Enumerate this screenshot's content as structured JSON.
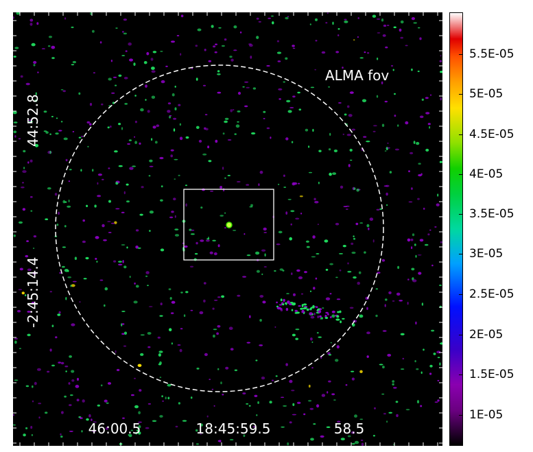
{
  "image": {
    "fov_label": "ALMA fov",
    "x_ticks": [
      "46:00.5",
      "18:45:59.5",
      "58.5"
    ],
    "y_ticks": [
      "44:52.8",
      "-2:45:14.4"
    ],
    "background_color": "#000000",
    "source_colors": [
      "#20e060",
      "#8a00c0",
      "#ffe000"
    ]
  },
  "colorbar": {
    "labels": [
      "5.5E-05",
      "5E-05",
      "4.5E-05",
      "4E-05",
      "3.5E-05",
      "3E-05",
      "2.5E-05",
      "2E-05",
      "1.5E-05",
      "1E-05"
    ]
  }
}
